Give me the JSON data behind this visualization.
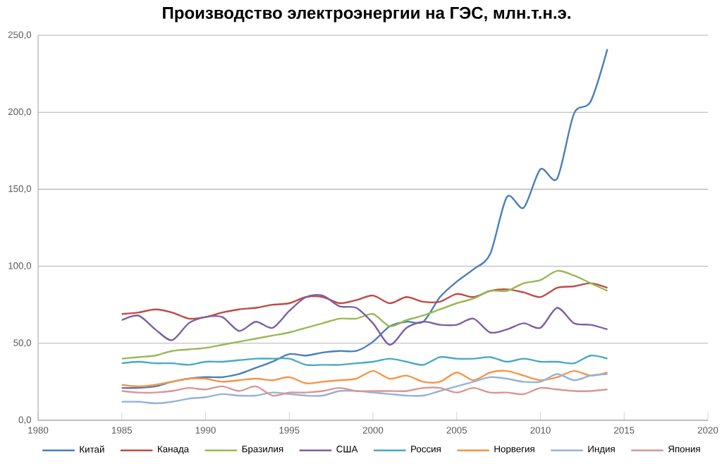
{
  "chart_data": {
    "type": "line",
    "title": "Производство электроэнергии на ГЭС, млн.т.н.э.",
    "x": [
      1985,
      1986,
      1987,
      1988,
      1989,
      1990,
      1991,
      1992,
      1993,
      1994,
      1995,
      1996,
      1997,
      1998,
      1999,
      2000,
      2001,
      2002,
      2003,
      2004,
      2005,
      2006,
      2007,
      2008,
      2009,
      2010,
      2011,
      2012,
      2013,
      2014
    ],
    "series": [
      {
        "name": "Китай",
        "color": "#4a7ebb",
        "values": [
          21,
          21,
          22,
          25,
          27,
          28,
          28,
          30,
          34,
          38,
          43,
          42,
          44,
          45,
          45,
          51,
          61,
          64,
          64,
          80,
          90,
          98,
          108,
          145,
          138,
          163,
          157,
          199,
          207,
          241
        ]
      },
      {
        "name": "Канада",
        "color": "#be4b48",
        "values": [
          69,
          70,
          72,
          70,
          66,
          67,
          70,
          72,
          73,
          75,
          76,
          80,
          80,
          76,
          78,
          81,
          76,
          80,
          77,
          77,
          82,
          80,
          84,
          85,
          83,
          80,
          86,
          87,
          89,
          86
        ]
      },
      {
        "name": "Бразилия",
        "color": "#98b954",
        "values": [
          40,
          41,
          42,
          45,
          46,
          47,
          49,
          51,
          53,
          55,
          57,
          60,
          63,
          66,
          66,
          69,
          61,
          65,
          68,
          72,
          76,
          79,
          84,
          84,
          89,
          91,
          97,
          94,
          89,
          84
        ]
      },
      {
        "name": "США",
        "color": "#7d60a0",
        "values": [
          65,
          68,
          59,
          52,
          63,
          67,
          67,
          58,
          64,
          60,
          71,
          80,
          81,
          74,
          73,
          63,
          49,
          60,
          64,
          62,
          62,
          66,
          57,
          59,
          63,
          60,
          73,
          63,
          62,
          59
        ]
      },
      {
        "name": "Россия",
        "color": "#46aac5",
        "values": [
          37,
          38,
          37,
          37,
          36,
          38,
          38,
          39,
          40,
          40,
          40,
          36,
          36,
          36,
          37,
          38,
          40,
          38,
          36,
          41,
          40,
          40,
          41,
          38,
          40,
          38,
          38,
          37,
          42,
          40
        ]
      },
      {
        "name": "Норвегия",
        "color": "#f69545",
        "values": [
          23,
          22,
          23,
          25,
          27,
          27,
          25,
          26,
          27,
          26,
          28,
          24,
          25,
          26,
          27,
          32,
          27,
          29,
          25,
          25,
          31,
          26,
          31,
          32,
          29,
          26,
          28,
          32,
          29,
          31
        ]
      },
      {
        "name": "Индия",
        "color": "#95b3d7",
        "values": [
          12,
          12,
          11,
          12,
          14,
          15,
          17,
          16,
          16,
          18,
          17,
          16,
          16,
          19,
          19,
          18,
          17,
          16,
          16,
          19,
          22,
          25,
          28,
          27,
          25,
          25,
          30,
          26,
          29,
          30
        ]
      },
      {
        "name": "Япония",
        "color": "#d99694",
        "values": [
          19,
          18,
          18,
          19,
          21,
          20,
          22,
          19,
          22,
          16,
          18,
          18,
          19,
          21,
          19,
          19,
          19,
          19,
          21,
          21,
          18,
          21,
          18,
          18,
          17,
          21,
          20,
          19,
          19,
          20
        ]
      }
    ],
    "xlim": [
      1980,
      2020
    ],
    "xticks": [
      1980,
      1985,
      1990,
      1995,
      2000,
      2005,
      2010,
      2015,
      2020
    ],
    "ylim": [
      0,
      250
    ],
    "yticks": [
      {
        "value": 0,
        "label": "0,0"
      },
      {
        "value": 50,
        "label": "50,0"
      },
      {
        "value": 100,
        "label": "100,0"
      },
      {
        "value": 150,
        "label": "150,0"
      },
      {
        "value": 200,
        "label": "200,0"
      },
      {
        "value": 250,
        "label": "250,0"
      }
    ],
    "grid": "y",
    "legend": "bottom"
  }
}
